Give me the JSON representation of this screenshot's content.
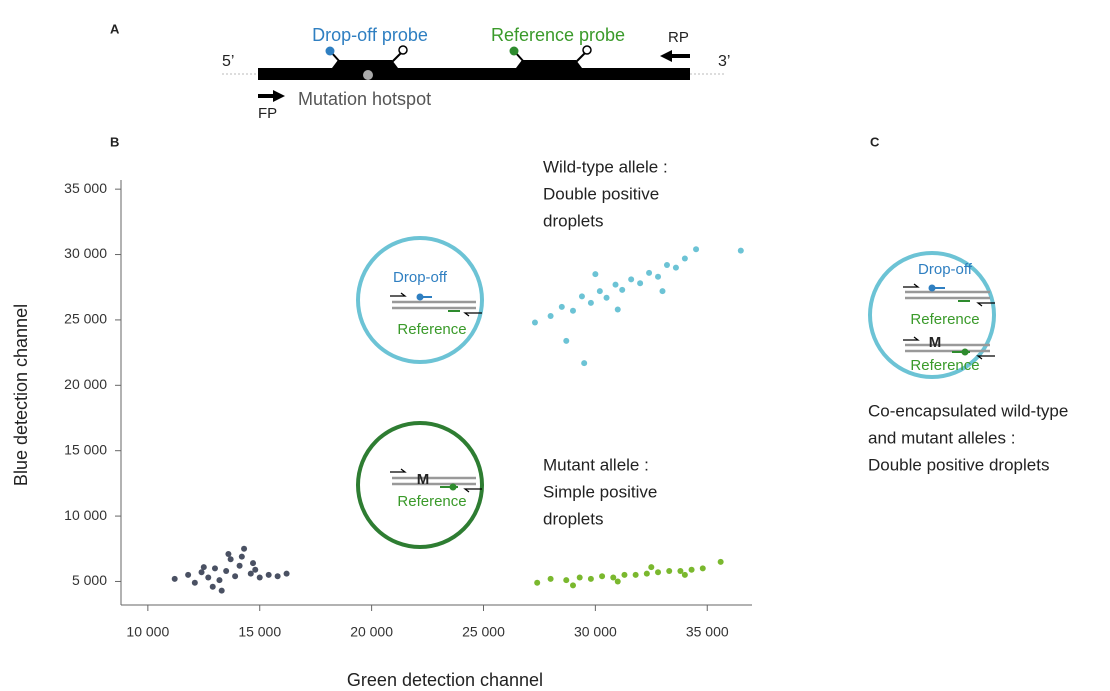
{
  "panel_labels": [
    "A",
    "B",
    "C"
  ],
  "panel_a": {
    "five_prime": "5’",
    "three_prime": "3’",
    "dropoff_probe": "Drop-off probe",
    "reference_probe": "Reference probe",
    "rp": "RP",
    "fp": "FP",
    "hotspot": "Mutation hotspot"
  },
  "chart_data": {
    "type": "scatter",
    "xlabel": "Green detection channel",
    "ylabel": "Blue detection channel",
    "xlim": [
      8800,
      37000
    ],
    "ylim": [
      3200,
      35700
    ],
    "xticks": [
      {
        "value": 10000,
        "label": "10 000"
      },
      {
        "value": 15000,
        "label": "15 000"
      },
      {
        "value": 20000,
        "label": "20 000"
      },
      {
        "value": 25000,
        "label": "25 000"
      },
      {
        "value": 30000,
        "label": "30 000"
      },
      {
        "value": 35000,
        "label": "35 000"
      }
    ],
    "yticks": [
      {
        "value": 5000,
        "label": "5 000"
      },
      {
        "value": 10000,
        "label": "10 000"
      },
      {
        "value": 15000,
        "label": "15 000"
      },
      {
        "value": 20000,
        "label": "20 000"
      },
      {
        "value": 25000,
        "label": "25 000"
      },
      {
        "value": 30000,
        "label": "30 000"
      },
      {
        "value": 35000,
        "label": "35 000"
      }
    ],
    "series": [
      {
        "color": "#4a5163",
        "x": [
          11200,
          11800,
          12100,
          12400,
          12700,
          13000,
          13200,
          13500,
          13700,
          13900,
          14100,
          14300,
          14600,
          14800,
          15000,
          15400,
          15800,
          16200,
          12900,
          13600,
          14200,
          13300,
          12500,
          14700
        ],
        "y": [
          5200,
          5500,
          4900,
          5700,
          5300,
          6000,
          5100,
          5800,
          6700,
          5400,
          6200,
          7500,
          5600,
          5900,
          5300,
          5500,
          5400,
          5600,
          4600,
          7100,
          6900,
          4300,
          6100,
          6400
        ]
      },
      {
        "color": "#6cc3d5",
        "x": [
          27300,
          28000,
          28500,
          29000,
          29400,
          29800,
          30200,
          30500,
          30900,
          31200,
          31600,
          32000,
          32400,
          32800,
          33200,
          33600,
          34000,
          34500,
          29500,
          31000,
          30000,
          33000,
          36500,
          28700
        ],
        "y": [
          24800,
          25300,
          26000,
          25700,
          26800,
          26300,
          27200,
          26700,
          27700,
          27300,
          28100,
          27800,
          28600,
          28300,
          29200,
          29000,
          29700,
          30400,
          21700,
          25800,
          28500,
          27200,
          30300,
          23400
        ]
      },
      {
        "color": "#7ab82e",
        "x": [
          27400,
          28000,
          28700,
          29300,
          29800,
          30300,
          30800,
          31300,
          31800,
          32300,
          32800,
          33300,
          33800,
          34300,
          34800,
          35600,
          29000,
          31000,
          32500,
          34000
        ],
        "y": [
          4900,
          5200,
          5100,
          5300,
          5200,
          5400,
          5300,
          5500,
          5500,
          5600,
          5700,
          5800,
          5800,
          5900,
          6000,
          6500,
          4700,
          5000,
          6100,
          5500
        ]
      }
    ],
    "annotations": [
      {
        "lines": [
          "Wild-type allele :",
          "Double positive",
          "droplets"
        ]
      },
      {
        "lines": [
          "Mutant allele :",
          "Simple positive",
          "droplets"
        ]
      }
    ],
    "wild_type_circle": {
      "dropoff": "Drop-off",
      "reference": "Reference"
    },
    "mutant_circle": {
      "mutation": "M",
      "reference": "Reference"
    }
  },
  "panel_c": {
    "dropoff": "Drop-off",
    "reference_1": "Reference",
    "mutation": "M",
    "reference_2": "Reference",
    "caption": [
      "Co-encapsulated wild-type",
      "and mutant alleles :",
      "Double positive droplets"
    ]
  }
}
